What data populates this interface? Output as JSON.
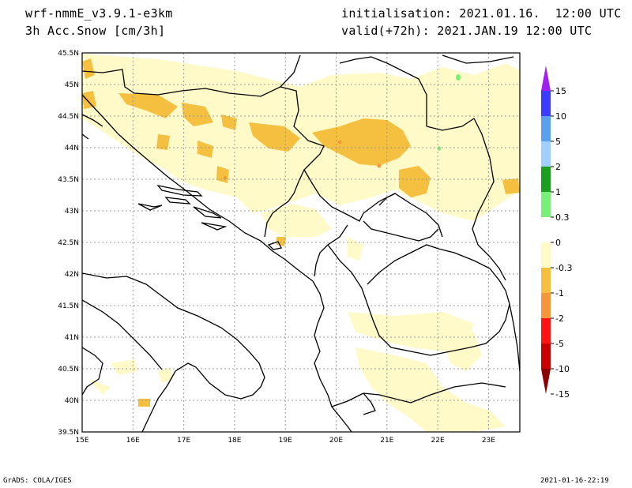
{
  "header": {
    "model": "wrf-nmmE_v3.9.1-e3km",
    "field": "3h Acc.Snow [cm/3h]",
    "init": "initialisation: 2021.01.16.  12:00 UTC",
    "valid": "valid(+72h): 2021.JAN.19 12:00 UTC"
  },
  "map": {
    "lat_labels": [
      "45.5N",
      "45N",
      "44.5N",
      "44N",
      "43.5N",
      "43N",
      "42.5N",
      "42N",
      "41.5N",
      "41N",
      "40.5N",
      "40N",
      "39.5N"
    ],
    "lon_labels": [
      "15E",
      "16E",
      "17E",
      "18E",
      "19E",
      "20E",
      "21E",
      "22E",
      "23E"
    ]
  },
  "colorbar": {
    "levels": [
      "15",
      "10",
      "5",
      "2",
      "1",
      "0.3",
      "0",
      "-0.3",
      "-1",
      "-2",
      "-5",
      "-10",
      "-15"
    ],
    "colors": [
      "#a020f0",
      "#3c3cff",
      "#5aa0f0",
      "#a0d0ff",
      "#1e9e1e",
      "#78f078",
      "#ffffff",
      "#fffac8",
      "#f5c040",
      "#f5963c",
      "#ff1414",
      "#c80000",
      "#8c0000"
    ]
  },
  "footer": {
    "credit": "GrADS: COLA/IGES",
    "timestamp": "2021-01-16-22:19"
  }
}
